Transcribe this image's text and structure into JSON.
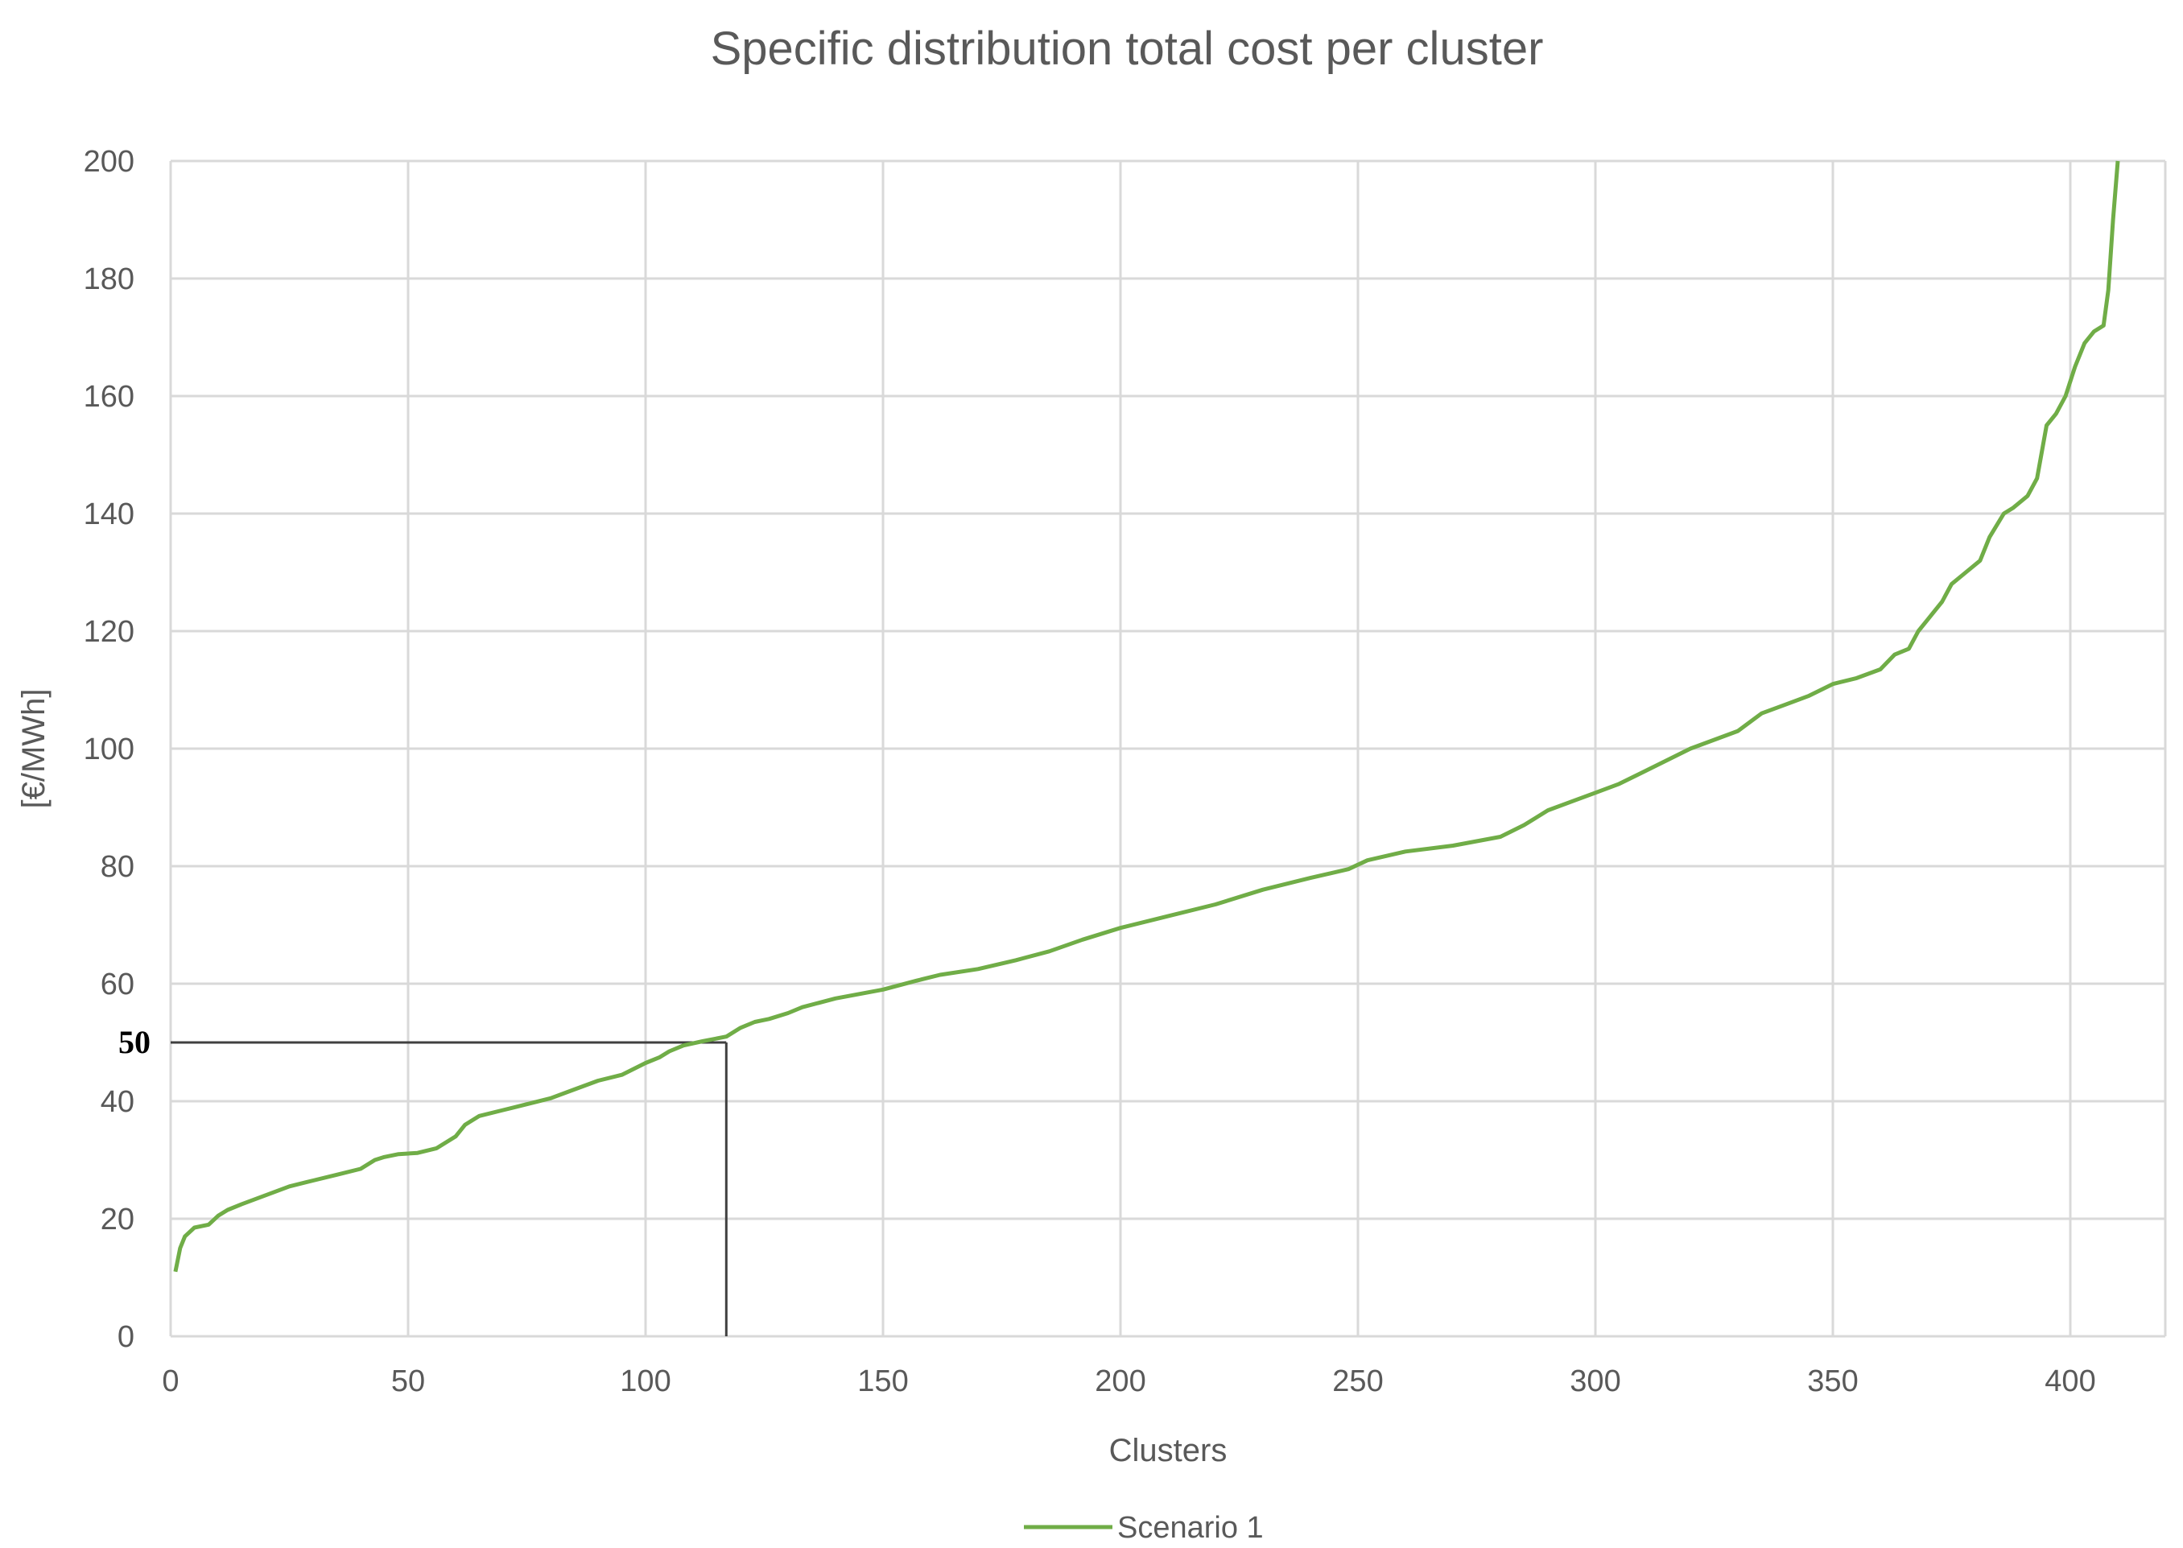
{
  "chart_data": {
    "type": "line",
    "title": "Specific distribution total cost per cluster",
    "xlabel": "Clusters",
    "ylabel": "[€/MWh]",
    "xlim": [
      0,
      420
    ],
    "ylim": [
      0,
      200
    ],
    "xticks": [
      0,
      50,
      100,
      150,
      200,
      250,
      300,
      350,
      400
    ],
    "yticks": [
      0,
      20,
      40,
      60,
      80,
      100,
      120,
      140,
      160,
      180,
      200
    ],
    "grid": true,
    "legend_position": "bottom",
    "series": [
      {
        "name": "Scenario 1",
        "color": "#70ad47",
        "x": [
          1,
          2,
          3,
          5,
          8,
          10,
          12,
          15,
          20,
          25,
          30,
          35,
          40,
          43,
          45,
          48,
          52,
          56,
          60,
          62,
          65,
          70,
          75,
          80,
          85,
          90,
          95,
          100,
          103,
          105,
          108,
          112,
          117,
          120,
          123,
          126,
          130,
          133,
          140,
          150,
          157,
          162,
          170,
          178,
          185,
          192,
          200,
          210,
          220,
          230,
          240,
          248,
          252,
          260,
          270,
          280,
          285,
          290,
          295,
          300,
          305,
          310,
          315,
          320,
          330,
          335,
          340,
          345,
          350,
          355,
          360,
          363,
          366,
          368,
          370,
          373,
          375,
          378,
          381,
          383,
          386,
          388,
          391,
          393,
          395,
          397,
          399,
          401,
          403,
          405,
          407,
          408,
          409,
          410
        ],
        "y": [
          11,
          15,
          17,
          18.5,
          19,
          20.5,
          21.5,
          22.5,
          24,
          25.5,
          26.5,
          27.5,
          28.5,
          30,
          30.5,
          31,
          31.2,
          32,
          34,
          36,
          37.5,
          38.5,
          39.5,
          40.5,
          42,
          43.5,
          44.5,
          46.5,
          47.5,
          48.5,
          49.5,
          50.2,
          51,
          52.5,
          53.5,
          54,
          55,
          56,
          57.5,
          59,
          60.5,
          61.5,
          62.5,
          64,
          65.5,
          67.5,
          69.5,
          71.5,
          73.5,
          76,
          78,
          79.5,
          81,
          82.5,
          83.5,
          85,
          87,
          89.5,
          91,
          92.5,
          94,
          96,
          98,
          100,
          103,
          106,
          107.5,
          109,
          111,
          112,
          113.5,
          116,
          117,
          120,
          122,
          125,
          128,
          130,
          132,
          136,
          140,
          141,
          143,
          146,
          155,
          157,
          160,
          165,
          169,
          171,
          172,
          178,
          190,
          200
        ]
      }
    ],
    "annotation": {
      "label": "50",
      "x": 117,
      "y": 50
    }
  }
}
